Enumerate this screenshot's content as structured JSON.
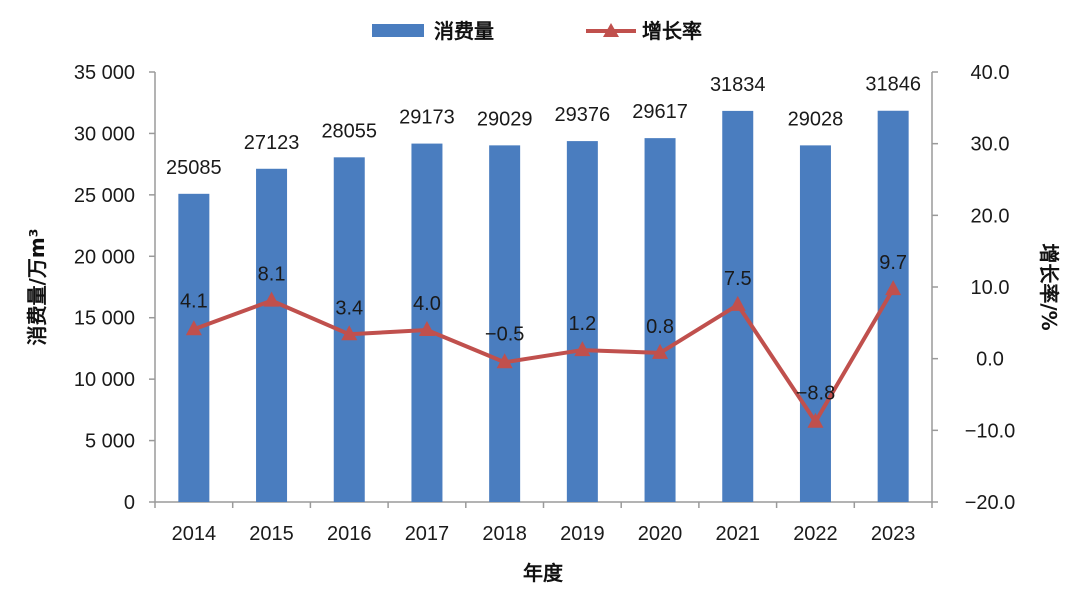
{
  "chart_data": {
    "type": "bar+line",
    "categories": [
      "2014",
      "2015",
      "2016",
      "2017",
      "2018",
      "2019",
      "2020",
      "2021",
      "2022",
      "2023"
    ],
    "series": [
      {
        "name": "消费量",
        "type": "bar",
        "axis": "left",
        "color": "#4a7dbf",
        "values": [
          25085,
          27123,
          28055,
          29173,
          29029,
          29376,
          29617,
          31834,
          29028,
          31846
        ],
        "labels": [
          "25085",
          "27123",
          "28055",
          "29173",
          "29029",
          "29376",
          "29617",
          "31834",
          "29028",
          "31846"
        ]
      },
      {
        "name": "增长率",
        "type": "line",
        "axis": "right",
        "color": "#c0504d",
        "marker": "triangle",
        "values": [
          4.1,
          8.1,
          3.4,
          4.0,
          -0.5,
          1.2,
          0.8,
          7.5,
          -8.8,
          9.7
        ],
        "labels": [
          "4.1",
          "8.1",
          "3.4",
          "4.0",
          "−0.5",
          "1.2",
          "0.8",
          "7.5",
          "−8.8",
          "9.7"
        ]
      }
    ],
    "xlabel": "年度",
    "ylabel": "消费量/万m³",
    "y2label": "增长率/%",
    "ylim": [
      0,
      35000
    ],
    "y2lim": [
      -20,
      40
    ],
    "yticks": [
      "0",
      "5 000",
      "10 000",
      "15 000",
      "20 000",
      "25 000",
      "30 000",
      "35 000"
    ],
    "y2ticks": [
      "−20.0",
      "−10.0",
      "0.0",
      "10.0",
      "20.0",
      "30.0",
      "40.0"
    ],
    "legend_position": "top-center",
    "grid": false
  }
}
